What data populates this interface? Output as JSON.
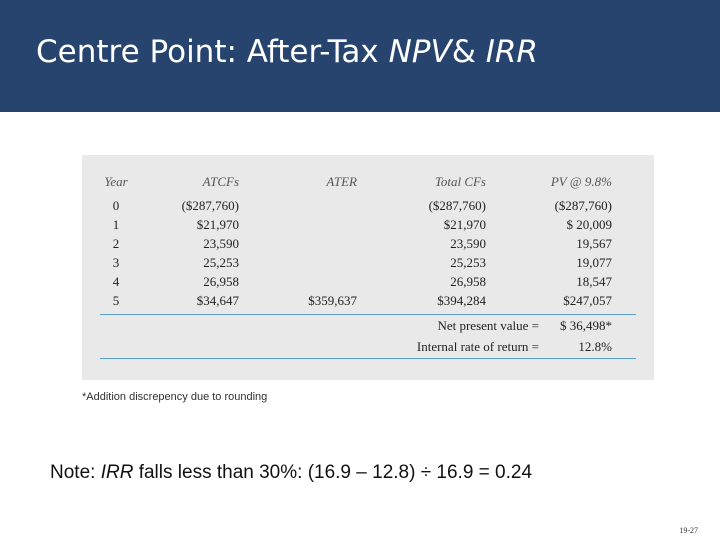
{
  "header": {
    "title": {
      "parts": [
        "Centre Point: After-Tax ",
        "NPV",
        "& ",
        "IRR"
      ]
    }
  },
  "table": {
    "columns": [
      "Year",
      "ATCFs",
      "ATER",
      "Total CFs",
      "PV @ 9.8%"
    ],
    "rows": [
      [
        "0",
        "($287,760)",
        null,
        "($287,760)",
        "($287,760)"
      ],
      [
        "1",
        "$21,970",
        null,
        "$21,970",
        "$ 20,009"
      ],
      [
        "2",
        "23,590",
        null,
        "23,590",
        "19,567"
      ],
      [
        "3",
        "25,253",
        null,
        "25,253",
        "19,077"
      ],
      [
        "4",
        "26,958",
        null,
        "26,958",
        "18,547"
      ],
      [
        "5",
        "$34,647",
        "$359,637",
        "$394,284",
        "$247,057"
      ]
    ],
    "summary": [
      [
        "Net present value =",
        "$ 36,498*"
      ],
      [
        "Internal rate of return =",
        "12.8%"
      ]
    ]
  },
  "footnote": "*Addition discrepency due to rounding",
  "note": {
    "parts": [
      "Note: ",
      "IRR",
      " falls less than 30%: (16.9 – 12.8) ÷ 16.9 = 0.24"
    ]
  },
  "page_number": "19-27"
}
